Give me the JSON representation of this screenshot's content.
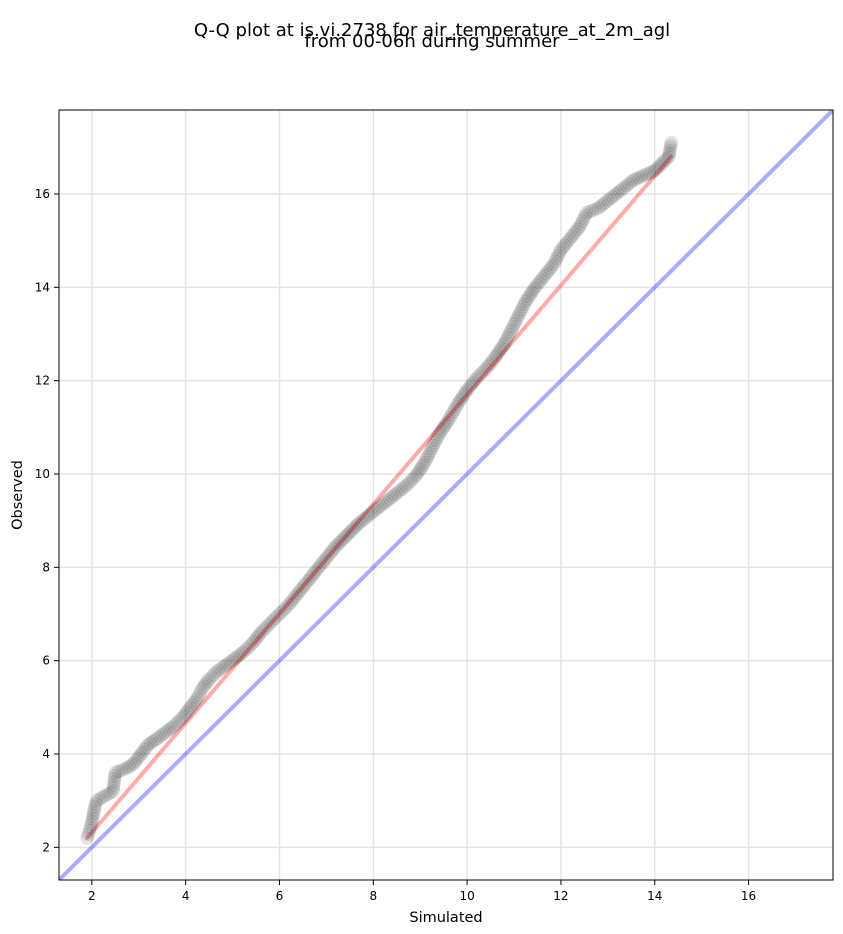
{
  "chart_data": {
    "type": "scatter",
    "title": "Q-Q plot at is.vi.2738 for air_temperature_at_2m_agl",
    "subtitle": "from 00-06h during summer",
    "xlabel": "Simulated",
    "ylabel": "Observed",
    "xlim": [
      1.3,
      17.8
    ],
    "ylim": [
      1.3,
      17.8
    ],
    "xticks": [
      2,
      4,
      6,
      8,
      10,
      12,
      14,
      16
    ],
    "yticks": [
      2,
      4,
      6,
      8,
      10,
      12,
      14,
      16
    ],
    "grid": true,
    "legend": "none",
    "colors": {
      "points": "#000000",
      "fit_line": "#ff0000",
      "identity_line": "#0000ff",
      "grid": "#e6e6e6"
    },
    "series": [
      {
        "type": "scatter",
        "points": [
          [
            1.9,
            2.2
          ],
          [
            1.95,
            2.35
          ],
          [
            2.0,
            2.55
          ],
          [
            2.05,
            2.8
          ],
          [
            2.1,
            3.0
          ],
          [
            2.45,
            3.2
          ],
          [
            2.5,
            3.6
          ],
          [
            2.75,
            3.7
          ],
          [
            2.9,
            3.8
          ],
          [
            3.05,
            4.0
          ],
          [
            3.2,
            4.2
          ],
          [
            3.35,
            4.3
          ],
          [
            3.55,
            4.45
          ],
          [
            3.75,
            4.6
          ],
          [
            3.95,
            4.8
          ],
          [
            4.1,
            5.0
          ],
          [
            4.25,
            5.2
          ],
          [
            4.35,
            5.4
          ],
          [
            4.5,
            5.6
          ],
          [
            4.65,
            5.75
          ],
          [
            4.85,
            5.9
          ],
          [
            5.05,
            6.05
          ],
          [
            5.25,
            6.2
          ],
          [
            5.45,
            6.4
          ],
          [
            5.6,
            6.6
          ],
          [
            5.8,
            6.8
          ],
          [
            6.0,
            7.0
          ],
          [
            6.2,
            7.2
          ],
          [
            6.4,
            7.45
          ],
          [
            6.6,
            7.7
          ],
          [
            6.8,
            7.95
          ],
          [
            7.0,
            8.2
          ],
          [
            7.2,
            8.45
          ],
          [
            7.45,
            8.7
          ],
          [
            7.7,
            8.95
          ],
          [
            7.95,
            9.15
          ],
          [
            8.2,
            9.35
          ],
          [
            8.45,
            9.55
          ],
          [
            8.7,
            9.75
          ],
          [
            8.9,
            9.95
          ],
          [
            9.1,
            10.25
          ],
          [
            9.25,
            10.55
          ],
          [
            9.4,
            10.85
          ],
          [
            9.6,
            11.15
          ],
          [
            9.8,
            11.5
          ],
          [
            10.0,
            11.8
          ],
          [
            10.2,
            12.05
          ],
          [
            10.4,
            12.25
          ],
          [
            10.6,
            12.5
          ],
          [
            10.8,
            12.8
          ],
          [
            10.95,
            13.1
          ],
          [
            11.1,
            13.4
          ],
          [
            11.25,
            13.7
          ],
          [
            11.45,
            14.0
          ],
          [
            11.65,
            14.25
          ],
          [
            11.85,
            14.5
          ],
          [
            12.0,
            14.8
          ],
          [
            12.2,
            15.05
          ],
          [
            12.4,
            15.3
          ],
          [
            12.55,
            15.6
          ],
          [
            12.8,
            15.7
          ],
          [
            13.05,
            15.9
          ],
          [
            13.3,
            16.1
          ],
          [
            13.55,
            16.3
          ],
          [
            14.0,
            16.5
          ],
          [
            14.3,
            16.8
          ],
          [
            14.35,
            17.1
          ]
        ]
      },
      {
        "type": "line",
        "points": [
          [
            1.9,
            2.2
          ],
          [
            14.35,
            16.8
          ]
        ]
      },
      {
        "type": "line",
        "points": [
          [
            1.3,
            1.3
          ],
          [
            17.8,
            17.8
          ]
        ]
      }
    ]
  }
}
